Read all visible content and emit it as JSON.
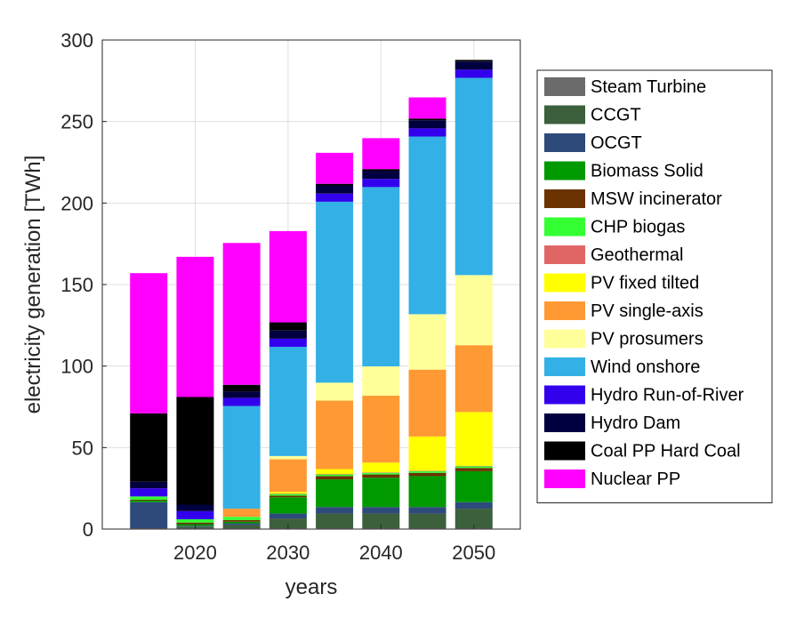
{
  "chart_data": {
    "type": "bar",
    "stacked": true,
    "title": "",
    "xlabel": "years",
    "ylabel": "electricity generation [TWh]",
    "x": [
      2015,
      2020,
      2025,
      2030,
      2035,
      2040,
      2045,
      2050
    ],
    "xticks": [
      2020,
      2030,
      2040,
      2050
    ],
    "xlim": [
      2010,
      2055
    ],
    "ylim": [
      0,
      300
    ],
    "yticks": [
      0,
      50,
      100,
      150,
      200,
      250,
      300
    ],
    "grid": true,
    "legend_position": "right-outside",
    "series": [
      {
        "name": "Steam Turbine",
        "color": "#6b6b6b",
        "values": [
          0.5,
          0.5,
          0.5,
          0.5,
          0.5,
          0.5,
          0.5,
          0.5
        ]
      },
      {
        "name": "CCGT",
        "color": "#3c5f3c",
        "values": [
          0,
          1,
          2,
          6,
          9,
          9,
          9,
          12
        ]
      },
      {
        "name": "OCGT",
        "color": "#2e4a7b",
        "values": [
          16,
          0.5,
          1,
          3,
          4,
          4,
          4,
          4
        ]
      },
      {
        "name": "Biomass Solid",
        "color": "#009900",
        "values": [
          1,
          1,
          1,
          10,
          17,
          18,
          19,
          19
        ]
      },
      {
        "name": "MSW incinerator",
        "color": "#6b3300",
        "values": [
          0.5,
          1,
          1,
          1,
          2,
          2,
          2,
          2
        ]
      },
      {
        "name": "CHP biogas",
        "color": "#33ff33",
        "values": [
          2,
          2,
          2,
          1,
          1,
          1,
          1,
          1
        ]
      },
      {
        "name": "Geothermal",
        "color": "#e06666",
        "values": [
          0,
          0,
          0,
          0.3,
          0.3,
          0.3,
          0.3,
          0.3
        ]
      },
      {
        "name": "PV fixed tilted",
        "color": "#ffff00",
        "values": [
          0,
          0,
          0,
          1,
          3,
          6,
          21,
          33
        ]
      },
      {
        "name": "PV single-axis",
        "color": "#ff9933",
        "values": [
          0,
          0,
          5,
          20,
          42,
          41,
          41,
          41
        ]
      },
      {
        "name": "PV prosumers",
        "color": "#ffff99",
        "values": [
          0,
          0,
          0,
          2,
          11,
          18,
          34,
          43
        ]
      },
      {
        "name": "Wind onshore",
        "color": "#33b0e5",
        "values": [
          0,
          0,
          63,
          67,
          111,
          110,
          109,
          121
        ]
      },
      {
        "name": "Hydro Run-of-River",
        "color": "#3300ee",
        "values": [
          5,
          5,
          5,
          5,
          5,
          5,
          5,
          5
        ]
      },
      {
        "name": "Hydro Dam",
        "color": "#000040",
        "values": [
          4,
          4,
          4,
          5,
          5,
          5,
          5,
          5
        ]
      },
      {
        "name": "Coal PP Hard Coal",
        "color": "#000000",
        "values": [
          42,
          66,
          4,
          5,
          1,
          1,
          1,
          1
        ]
      },
      {
        "name": "Nuclear PP",
        "color": "#ff00ff",
        "values": [
          86,
          86,
          87,
          56,
          19,
          19,
          13,
          0
        ]
      }
    ]
  }
}
